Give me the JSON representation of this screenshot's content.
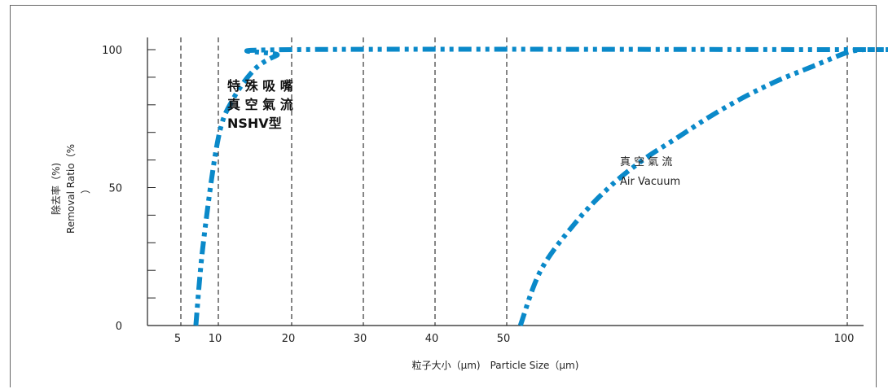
{
  "chart_data": {
    "type": "line",
    "xlabel": "粒子大小（μm)　Particle Size（μm)",
    "ylabel_cn": "除去率（%)",
    "ylabel_en": "Removal Ratio（%",
    "ylabel_en_wrap": "）",
    "x_ticks": [
      "5",
      "10",
      "20",
      "30",
      "40",
      "50",
      "100"
    ],
    "y_ticks": [
      "0",
      "50",
      "100"
    ],
    "ylim": [
      0,
      100
    ],
    "grid": "vertical dashed lines at x ticks",
    "series": [
      {
        "label_lines": [
          "特 殊 吸 嘴",
          "真 空 氣 流",
          "NSHV型"
        ],
        "color": "#0a89c9",
        "points": [
          [
            7,
            0
          ],
          [
            8,
            30
          ],
          [
            10,
            68
          ],
          [
            12,
            82
          ],
          [
            15,
            93
          ],
          [
            18,
            98
          ],
          [
            20,
            100
          ],
          [
            100,
            100
          ],
          [
            104,
            100
          ]
        ]
      },
      {
        "label_lines": [
          "真 空 氣 流",
          "Air Vacuum"
        ],
        "color": "#0a89c9",
        "points": [
          [
            52,
            0
          ],
          [
            55,
            20
          ],
          [
            60,
            37
          ],
          [
            65,
            50
          ],
          [
            70,
            60
          ],
          [
            75,
            68
          ],
          [
            80,
            76
          ],
          [
            85,
            83
          ],
          [
            90,
            89
          ],
          [
            95,
            94
          ],
          [
            100,
            99
          ],
          [
            104,
            100
          ]
        ]
      }
    ]
  }
}
